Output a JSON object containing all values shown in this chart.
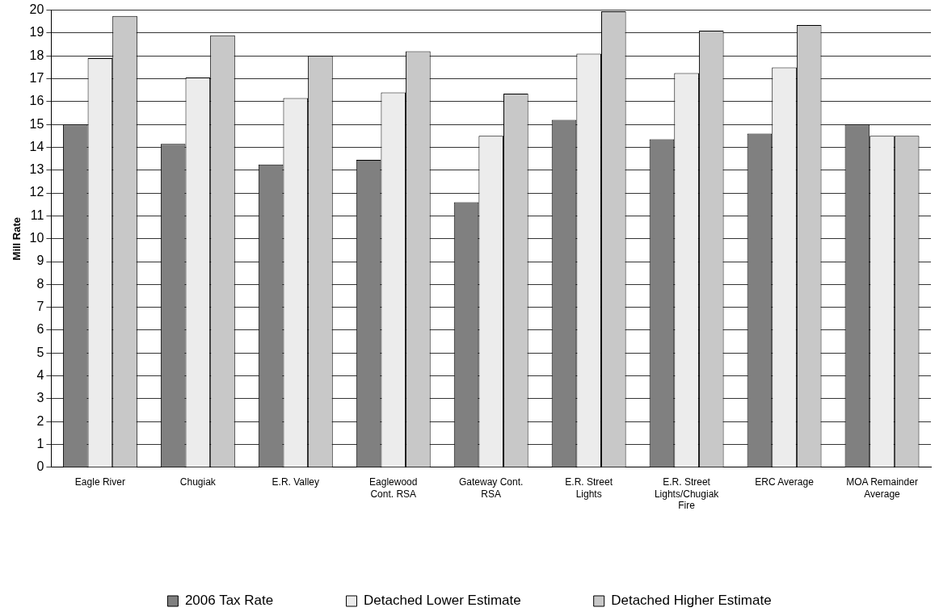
{
  "chart_data": {
    "type": "bar",
    "ylabel": "Mill Rate",
    "categories": [
      "Eagle River",
      "Chugiak",
      "E.R. Valley",
      "Eaglewood Cont. RSA",
      "Gateway Cont. RSA",
      "E.R. Street Lights",
      "E.R. Street Lights/Chugiak Fire",
      "ERC Average",
      "MOA Remainder Average"
    ],
    "series": [
      {
        "name": "2006 Tax Rate",
        "color": "#808080",
        "values": [
          15.0,
          14.15,
          13.25,
          13.45,
          11.6,
          15.2,
          14.35,
          14.6,
          15.0
        ]
      },
      {
        "name": "Detached Lower Estimate",
        "color": "#ececec",
        "values": [
          17.9,
          17.05,
          16.15,
          16.4,
          14.5,
          18.1,
          17.25,
          17.5,
          14.5
        ]
      },
      {
        "name": "Detached Higher Estimate",
        "color": "#c8c8c8",
        "values": [
          19.75,
          18.9,
          18.0,
          18.2,
          16.35,
          19.95,
          19.1,
          19.35,
          14.5
        ]
      }
    ],
    "ylim": [
      0,
      20
    ],
    "yticks": [
      0,
      1,
      2,
      3,
      4,
      5,
      6,
      7,
      8,
      9,
      10,
      11,
      12,
      13,
      14,
      15,
      16,
      17,
      18,
      19,
      20
    ],
    "grid": "y",
    "legend": "bottom"
  }
}
